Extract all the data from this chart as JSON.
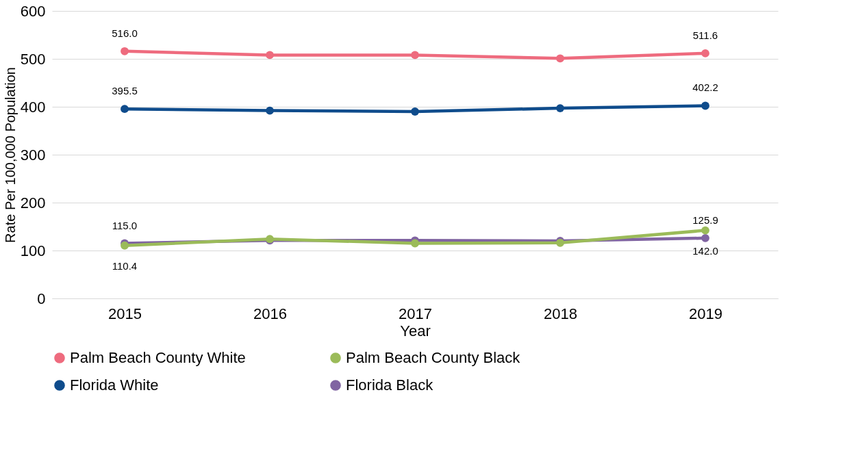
{
  "chart_data": {
    "type": "line",
    "xlabel": "Year",
    "ylabel": "Rate Per 100,000 Population",
    "categories": [
      "2015",
      "2016",
      "2017",
      "2018",
      "2019"
    ],
    "series": [
      {
        "name": "Palm Beach County White",
        "color": "#ee6b7e",
        "values": [
          516.0,
          508,
          508,
          501,
          511.6
        ],
        "value_labels": [
          "516.0",
          null,
          null,
          null,
          "511.6"
        ]
      },
      {
        "name": "Palm Beach County Black",
        "color": "#9bbb59",
        "values": [
          110.4,
          124,
          115,
          116,
          142.0
        ],
        "value_labels": [
          "110.4",
          null,
          null,
          null,
          "142.0"
        ]
      },
      {
        "name": "Florida White",
        "color": "#0f4c8c",
        "values": [
          395.5,
          392,
          390,
          397,
          402.2
        ],
        "value_labels": [
          "395.5",
          null,
          null,
          null,
          "402.2"
        ]
      },
      {
        "name": "Florida Black",
        "color": "#8064a2",
        "values": [
          115.0,
          121,
          121,
          120,
          125.9
        ],
        "value_labels": [
          "115.0",
          null,
          null,
          null,
          "125.9"
        ]
      }
    ],
    "ylim": [
      0,
      600
    ],
    "yticks": [
      0,
      100,
      200,
      300,
      400,
      500,
      600
    ],
    "grid": "y",
    "legend": "bottom",
    "marker": "circle",
    "line_style": "solid"
  }
}
